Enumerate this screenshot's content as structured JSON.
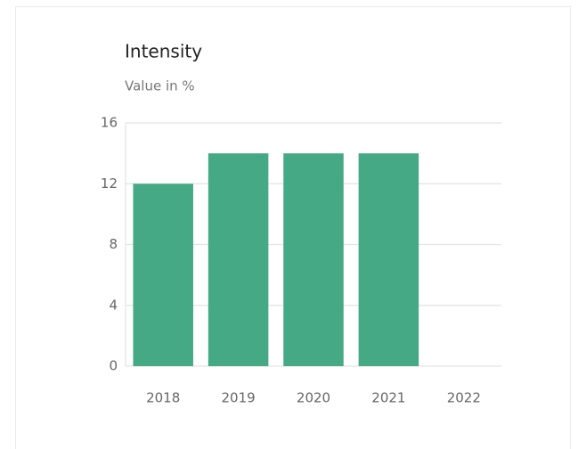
{
  "chart_data": {
    "type": "bar",
    "title": "Intensity",
    "subtitle": "Value in %",
    "categories": [
      "2018",
      "2019",
      "2020",
      "2021",
      "2022"
    ],
    "values": [
      12,
      14,
      14,
      14,
      null
    ],
    "color": "#45a986",
    "ylim": [
      0,
      16
    ],
    "yticks": [
      0,
      4,
      8,
      12,
      16
    ],
    "grid": true
  }
}
